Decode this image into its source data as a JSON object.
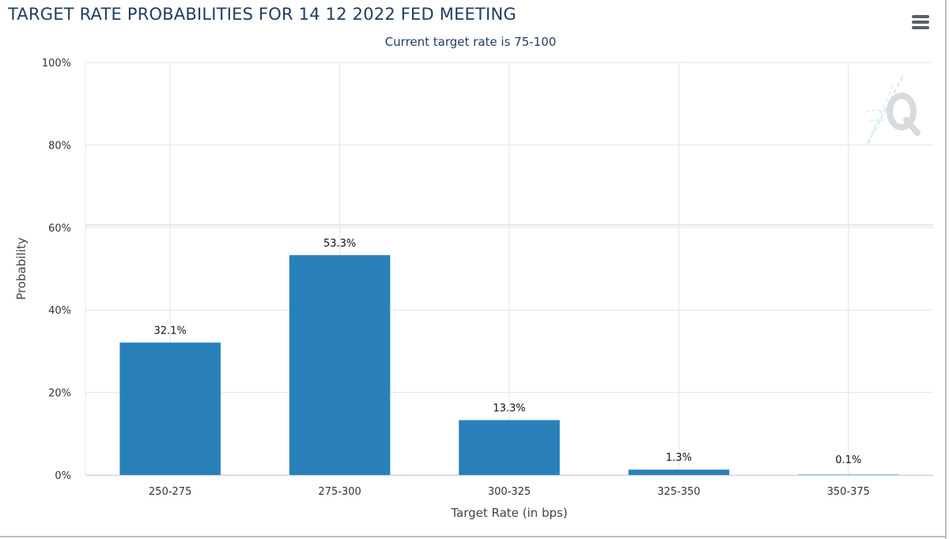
{
  "header": {
    "title": "TARGET RATE PROBABILITIES FOR 14 12 2022 FED MEETING",
    "subtitle": "Current target rate is 75-100"
  },
  "menu": {
    "icon": "hamburger-menu-icon"
  },
  "watermark": {
    "icon": "quikstrike-q-logo"
  },
  "colors": {
    "bar": "#2980b9",
    "grid": "#e3e3e3",
    "axis_line": "#ccd6eb",
    "title": "#1f3d63"
  },
  "chart_data": {
    "type": "bar",
    "title": "TARGET RATE PROBABILITIES FOR 14 12 2022 FED MEETING",
    "subtitle": "Current target rate is 75-100",
    "xlabel": "Target Rate (in bps)",
    "ylabel": "Probability",
    "categories": [
      "250-275",
      "275-300",
      "300-325",
      "325-350",
      "350-375"
    ],
    "values": [
      32.1,
      53.3,
      13.3,
      1.3,
      0.1
    ],
    "data_labels": [
      "32.1%",
      "53.3%",
      "13.3%",
      "1.3%",
      "0.1%"
    ],
    "yticks": [
      "0%",
      "20%",
      "40%",
      "60%",
      "80%",
      "100%"
    ],
    "ylim": [
      0,
      100
    ],
    "grid": true,
    "legend": "none"
  }
}
